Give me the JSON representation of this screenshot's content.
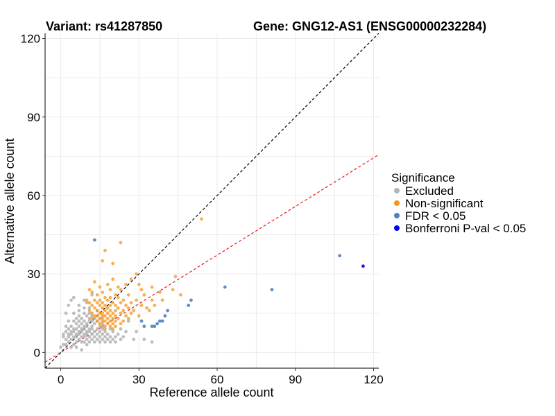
{
  "colors": {
    "excluded": "#b3b3b3",
    "non_significant": "#f7941d",
    "fdr": "#4f81bd",
    "bonferroni": "#0000ff",
    "diagonal": "#000000",
    "expected": "#e41a1c",
    "grid": "#ebebeb"
  },
  "chart_data": {
    "type": "scatter",
    "title_left": "Variant: rs41287850",
    "title_right": "Gene: GNG12-AS1 (ENSG00000232284)",
    "xlabel": "Reference allele count",
    "ylabel": "Alternative allele count",
    "xlim": [
      -6,
      122
    ],
    "ylim": [
      -6,
      122
    ],
    "xticks": [
      0,
      30,
      60,
      90,
      120
    ],
    "yticks": [
      0,
      30,
      60,
      90,
      120
    ],
    "grid": true,
    "legend": {
      "title": "Significance",
      "position": "right",
      "entries": [
        {
          "key": "excluded",
          "label": "Excluded"
        },
        {
          "key": "non_significant",
          "label": "Non-significant"
        },
        {
          "key": "fdr",
          "label": "FDR < 0.05"
        },
        {
          "key": "bonferroni",
          "label": "Bonferroni P-val < 0.05"
        }
      ]
    },
    "reference_lines": [
      {
        "name": "y = x",
        "slope": 1.0,
        "intercept": 0,
        "style": "dashed",
        "color_key": "diagonal"
      },
      {
        "name": "expected ratio",
        "slope": 0.62,
        "intercept": 0,
        "style": "dashed",
        "color_key": "expected"
      }
    ],
    "series": [
      {
        "key": "excluded",
        "points": [
          [
            0,
            2
          ],
          [
            1,
            3
          ],
          [
            1,
            6
          ],
          [
            1,
            7
          ],
          [
            2,
            3
          ],
          [
            2,
            5
          ],
          [
            2,
            8
          ],
          [
            2,
            10
          ],
          [
            2,
            15
          ],
          [
            3,
            4
          ],
          [
            3,
            6
          ],
          [
            3,
            7
          ],
          [
            3,
            9
          ],
          [
            3,
            12
          ],
          [
            3,
            18
          ],
          [
            4,
            2
          ],
          [
            4,
            5
          ],
          [
            4,
            7
          ],
          [
            4,
            8
          ],
          [
            4,
            10
          ],
          [
            4,
            20
          ],
          [
            5,
            3
          ],
          [
            5,
            6
          ],
          [
            5,
            8
          ],
          [
            5,
            9
          ],
          [
            5,
            12
          ],
          [
            5,
            15
          ],
          [
            5,
            21
          ],
          [
            6,
            2
          ],
          [
            6,
            4
          ],
          [
            6,
            6
          ],
          [
            6,
            7
          ],
          [
            6,
            9
          ],
          [
            6,
            11
          ],
          [
            6,
            13
          ],
          [
            7,
            5
          ],
          [
            7,
            7
          ],
          [
            7,
            8
          ],
          [
            7,
            10
          ],
          [
            7,
            12
          ],
          [
            7,
            14
          ],
          [
            7,
            16
          ],
          [
            7,
            18
          ],
          [
            8,
            1
          ],
          [
            8,
            4
          ],
          [
            8,
            6
          ],
          [
            8,
            8
          ],
          [
            8,
            9
          ],
          [
            8,
            11
          ],
          [
            8,
            13
          ],
          [
            9,
            4
          ],
          [
            9,
            6
          ],
          [
            9,
            7
          ],
          [
            9,
            9
          ],
          [
            9,
            10
          ],
          [
            9,
            12
          ],
          [
            9,
            15
          ],
          [
            9,
            17
          ],
          [
            9,
            20
          ],
          [
            10,
            3
          ],
          [
            10,
            5
          ],
          [
            10,
            7
          ],
          [
            10,
            8
          ],
          [
            10,
            10
          ],
          [
            10,
            11
          ],
          [
            10,
            14
          ],
          [
            10,
            19
          ],
          [
            11,
            4
          ],
          [
            11,
            6
          ],
          [
            11,
            8
          ],
          [
            11,
            9
          ],
          [
            11,
            12
          ],
          [
            11,
            13
          ],
          [
            11,
            15
          ],
          [
            11,
            17
          ],
          [
            12,
            5
          ],
          [
            12,
            7
          ],
          [
            12,
            9
          ],
          [
            12,
            10
          ],
          [
            12,
            12
          ],
          [
            12,
            14
          ],
          [
            12,
            22
          ],
          [
            13,
            4
          ],
          [
            13,
            6
          ],
          [
            13,
            8
          ],
          [
            13,
            11
          ],
          [
            13,
            13
          ],
          [
            14,
            5
          ],
          [
            14,
            7
          ],
          [
            14,
            9
          ],
          [
            14,
            12
          ],
          [
            14,
            16
          ],
          [
            15,
            4
          ],
          [
            15,
            6
          ],
          [
            15,
            8
          ],
          [
            15,
            10
          ],
          [
            15,
            13
          ],
          [
            16,
            5
          ],
          [
            16,
            7
          ],
          [
            16,
            9
          ],
          [
            16,
            11
          ],
          [
            17,
            4
          ],
          [
            17,
            6
          ],
          [
            17,
            8
          ],
          [
            17,
            10
          ],
          [
            18,
            5
          ],
          [
            18,
            7
          ],
          [
            19,
            4
          ],
          [
            19,
            6
          ],
          [
            19,
            9
          ],
          [
            20,
            5
          ],
          [
            20,
            8
          ],
          [
            21,
            4
          ],
          [
            21,
            6
          ],
          [
            22,
            7
          ],
          [
            23,
            5
          ],
          [
            23,
            9
          ],
          [
            24,
            6
          ],
          [
            25,
            8
          ],
          [
            26,
            12
          ],
          [
            28,
            5
          ],
          [
            29,
            8
          ],
          [
            32,
            5
          ],
          [
            35,
            4
          ]
        ]
      },
      {
        "key": "non_significant",
        "points": [
          [
            54,
            51
          ],
          [
            23,
            42
          ],
          [
            17,
            39
          ],
          [
            16,
            35
          ],
          [
            20,
            34
          ],
          [
            29,
            30
          ],
          [
            13,
            27
          ],
          [
            18,
            26
          ],
          [
            25,
            26
          ],
          [
            30,
            26
          ],
          [
            15,
            25
          ],
          [
            22,
            25
          ],
          [
            35,
            25
          ],
          [
            44,
            29
          ],
          [
            27,
            28
          ],
          [
            20,
            28
          ],
          [
            11,
            24
          ],
          [
            19,
            24
          ],
          [
            23,
            24
          ],
          [
            31,
            24
          ],
          [
            12,
            23
          ],
          [
            16,
            23
          ],
          [
            21,
            22
          ],
          [
            26,
            22
          ],
          [
            32,
            22
          ],
          [
            38,
            23
          ],
          [
            43,
            24
          ],
          [
            14,
            22
          ],
          [
            17,
            21
          ],
          [
            19,
            21
          ],
          [
            22,
            21
          ],
          [
            10,
            20
          ],
          [
            13,
            20
          ],
          [
            15,
            20
          ],
          [
            18,
            20
          ],
          [
            24,
            20
          ],
          [
            29,
            20
          ],
          [
            35,
            20
          ],
          [
            39,
            20
          ],
          [
            46,
            22
          ],
          [
            11,
            19
          ],
          [
            14,
            19
          ],
          [
            16,
            19
          ],
          [
            20,
            19
          ],
          [
            23,
            19
          ],
          [
            27,
            19
          ],
          [
            12,
            18
          ],
          [
            15,
            18
          ],
          [
            17,
            18
          ],
          [
            19,
            18
          ],
          [
            21,
            18
          ],
          [
            25,
            18
          ],
          [
            31,
            18
          ],
          [
            36,
            18
          ],
          [
            13,
            17
          ],
          [
            16,
            17
          ],
          [
            18,
            17
          ],
          [
            22,
            17
          ],
          [
            26,
            17
          ],
          [
            33,
            17
          ],
          [
            11,
            16
          ],
          [
            14,
            16
          ],
          [
            17,
            16
          ],
          [
            19,
            16
          ],
          [
            21,
            16
          ],
          [
            24,
            16
          ],
          [
            28,
            16
          ],
          [
            34,
            16
          ],
          [
            12,
            15
          ],
          [
            15,
            15
          ],
          [
            16,
            15
          ],
          [
            18,
            15
          ],
          [
            20,
            15
          ],
          [
            23,
            15
          ],
          [
            27,
            15
          ],
          [
            13,
            14
          ],
          [
            14,
            14
          ],
          [
            16,
            14
          ],
          [
            17,
            14
          ],
          [
            19,
            14
          ],
          [
            21,
            14
          ],
          [
            25,
            14
          ],
          [
            30,
            14
          ],
          [
            12,
            13
          ],
          [
            15,
            13
          ],
          [
            16,
            13
          ],
          [
            18,
            13
          ],
          [
            20,
            13
          ],
          [
            22,
            13
          ],
          [
            26,
            13
          ],
          [
            14,
            12
          ],
          [
            16,
            12
          ],
          [
            17,
            12
          ],
          [
            19,
            12
          ],
          [
            21,
            12
          ],
          [
            24,
            12
          ],
          [
            15,
            11
          ],
          [
            18,
            11
          ],
          [
            20,
            11
          ],
          [
            23,
            11
          ],
          [
            16,
            10
          ],
          [
            19,
            10
          ],
          [
            21,
            10
          ],
          [
            17,
            9
          ],
          [
            20,
            9
          ]
        ]
      },
      {
        "key": "fdr",
        "points": [
          [
            13,
            43
          ],
          [
            107,
            37
          ],
          [
            63,
            25
          ],
          [
            81,
            24
          ],
          [
            50,
            20
          ],
          [
            49,
            18
          ],
          [
            41,
            16
          ],
          [
            40,
            14
          ],
          [
            39,
            12
          ],
          [
            38,
            12
          ],
          [
            37,
            11
          ],
          [
            36,
            10
          ],
          [
            35,
            10
          ],
          [
            32,
            10
          ],
          [
            31,
            12
          ]
        ]
      },
      {
        "key": "bonferroni",
        "points": [
          [
            116,
            33
          ]
        ]
      }
    ]
  }
}
